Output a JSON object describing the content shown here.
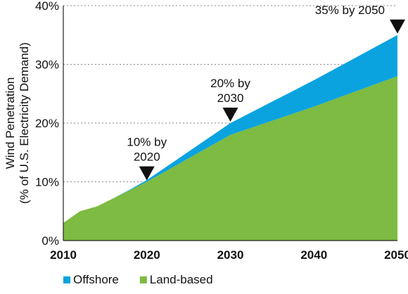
{
  "chart_data": {
    "type": "area",
    "x": [
      2010,
      2012,
      2014,
      2016,
      2018,
      2020,
      2030,
      2040,
      2050
    ],
    "series": [
      {
        "name": "Land-based",
        "color": "#7dbb42",
        "values": [
          3,
          5,
          5.8,
          7.2,
          8.6,
          10,
          18,
          22.8,
          28
        ]
      },
      {
        "name": "Offshore",
        "color": "#0aa3e0",
        "values": [
          0,
          0,
          0,
          0,
          0.1,
          0.3,
          2,
          4.5,
          7
        ]
      }
    ],
    "stacked": true,
    "ylabel_line1": "Wind Penetration",
    "ylabel_line2": "(% of U.S. Electricity Demand)",
    "xlim": [
      2010,
      2050
    ],
    "ylim": [
      0,
      40
    ],
    "yticks": [
      {
        "value": 0,
        "label": "0%"
      },
      {
        "value": 10,
        "label": "10%"
      },
      {
        "value": 20,
        "label": "20%"
      },
      {
        "value": 30,
        "label": "30%"
      },
      {
        "value": 40,
        "label": "40%"
      }
    ],
    "xticks": [
      {
        "value": 2010,
        "label": "2010"
      },
      {
        "value": 2020,
        "label": "2020"
      },
      {
        "value": 2030,
        "label": "2030"
      },
      {
        "value": 2040,
        "label": "2040"
      },
      {
        "value": 2050,
        "label": "2050"
      }
    ],
    "grid": "horizontal-dotted",
    "annotations": [
      {
        "x": 2020,
        "y": 10,
        "lines": [
          "10% by",
          "2020"
        ]
      },
      {
        "x": 2030,
        "y": 20,
        "lines": [
          "20% by",
          "2030"
        ]
      },
      {
        "x": 2050,
        "y": 35,
        "lines": [
          "35% by 2050"
        ]
      }
    ],
    "legend": {
      "placement": "bottom-left",
      "items": [
        {
          "label": "Offshore",
          "color": "#0aa3e0"
        },
        {
          "label": "Land-based",
          "color": "#7dbb42"
        }
      ]
    }
  }
}
